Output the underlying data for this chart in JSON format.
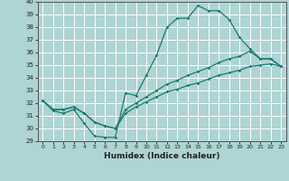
{
  "xlabel": "Humidex (Indice chaleur)",
  "bg_color": "#aed4d4",
  "grid_color": "#ffffff",
  "line_color": "#1a7a6e",
  "xmin": 0,
  "xmax": 23,
  "ymin": 29,
  "ymax": 40,
  "line1_x": [
    0,
    1,
    2,
    3,
    4,
    5,
    6,
    7,
    8,
    9,
    10,
    11,
    12,
    13,
    14,
    15,
    16,
    17,
    18,
    19,
    20,
    21,
    22,
    23
  ],
  "line1_y": [
    32.2,
    31.4,
    31.2,
    31.5,
    30.4,
    29.4,
    29.3,
    29.3,
    32.8,
    32.6,
    34.2,
    35.8,
    38.0,
    38.7,
    38.7,
    39.7,
    39.3,
    39.3,
    38.6,
    37.2,
    36.3,
    35.5,
    35.5,
    34.9
  ],
  "line2_x": [
    0,
    1,
    2,
    3,
    4,
    5,
    6,
    7,
    8,
    9,
    10,
    11,
    12,
    13,
    14,
    15,
    16,
    17,
    18,
    19,
    20,
    21,
    22,
    23
  ],
  "line2_y": [
    32.2,
    31.5,
    31.5,
    31.7,
    31.2,
    30.5,
    30.2,
    30.0,
    31.5,
    32.0,
    32.5,
    33.0,
    33.5,
    33.8,
    34.2,
    34.5,
    34.8,
    35.2,
    35.5,
    35.7,
    36.1,
    35.5,
    35.5,
    34.9
  ],
  "line3_x": [
    0,
    1,
    2,
    3,
    4,
    5,
    6,
    7,
    8,
    9,
    10,
    11,
    12,
    13,
    14,
    15,
    16,
    17,
    18,
    19,
    20,
    21,
    22,
    23
  ],
  "line3_y": [
    32.2,
    31.5,
    31.5,
    31.7,
    31.2,
    30.5,
    30.2,
    30.0,
    31.2,
    31.7,
    32.1,
    32.5,
    32.9,
    33.1,
    33.4,
    33.6,
    33.9,
    34.2,
    34.4,
    34.6,
    34.9,
    35.0,
    35.1,
    34.9
  ],
  "tick_fontsize": 5.5,
  "xlabel_fontsize": 6.5
}
